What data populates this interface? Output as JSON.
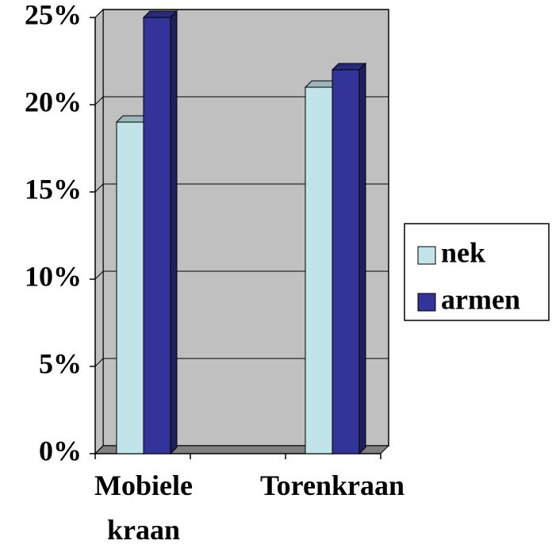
{
  "chart_data": {
    "type": "bar",
    "categories": [
      "Mobiele kraan",
      "Torenkraan"
    ],
    "series": [
      {
        "name": "nek",
        "color": "#c0e4e8",
        "values": [
          19,
          21
        ]
      },
      {
        "name": "armen",
        "color": "#333399",
        "values": [
          25,
          22
        ]
      }
    ],
    "ylim": [
      0,
      25
    ],
    "yticks": [
      {
        "value": 0,
        "label": "0%"
      },
      {
        "value": 5,
        "label": "5%"
      },
      {
        "value": 10,
        "label": "10%"
      },
      {
        "value": 15,
        "label": "15%"
      },
      {
        "value": 20,
        "label": "20%"
      },
      {
        "value": 25,
        "label": "25%"
      }
    ],
    "grid": true,
    "legend": "right"
  }
}
